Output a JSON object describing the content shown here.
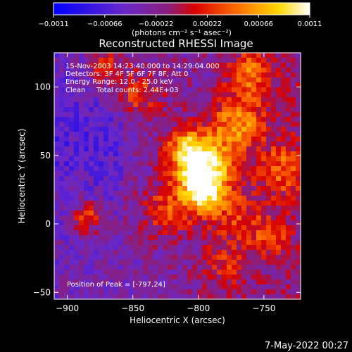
{
  "colorbar": {
    "ticks": [
      "-0.0011",
      "-0.00066",
      "-0.00022",
      "0.00022",
      "0.00066",
      "0.0011"
    ],
    "unit_label": "(photons cm⁻² s⁻¹ asec⁻²)",
    "min": -0.0011,
    "max": 0.0011
  },
  "title": "Reconstructed RHESSI Image",
  "annotations": {
    "time_range": "15-Nov-2003 14:23:40.000 to 14:29:04.000",
    "detectors": "Detectors: 3F 4F 5F 6F 7F 8F, Att 0",
    "energy_range": "Energy Range: 12.0 - 25.0 keV",
    "clean": "Clean     Total counts: 2.44E+03",
    "peak": "Position of Peak = [-797,24]"
  },
  "footer_date": "7-May-2022 00:27",
  "chart_data": {
    "type": "heatmap",
    "title": "Reconstructed RHESSI Image",
    "xlabel": "Heliocentric X (arcsec)",
    "ylabel": "Heliocentric Y (arcsec)",
    "xlim": [
      -910,
      -722
    ],
    "ylim": [
      -55,
      125
    ],
    "x_ticks": [
      -900,
      -850,
      -800,
      -750
    ],
    "y_ticks": [
      -50,
      0,
      50,
      100
    ],
    "x_tick_labels": [
      "−900",
      "−850",
      "−800",
      "−750"
    ],
    "y_tick_labels": [
      "−50",
      "0",
      "50",
      "100"
    ],
    "peak": [
      -797,
      24
    ],
    "value_range": [
      -0.0011,
      0.0011
    ],
    "colormap": "blue-purple-red-yellow-white"
  }
}
